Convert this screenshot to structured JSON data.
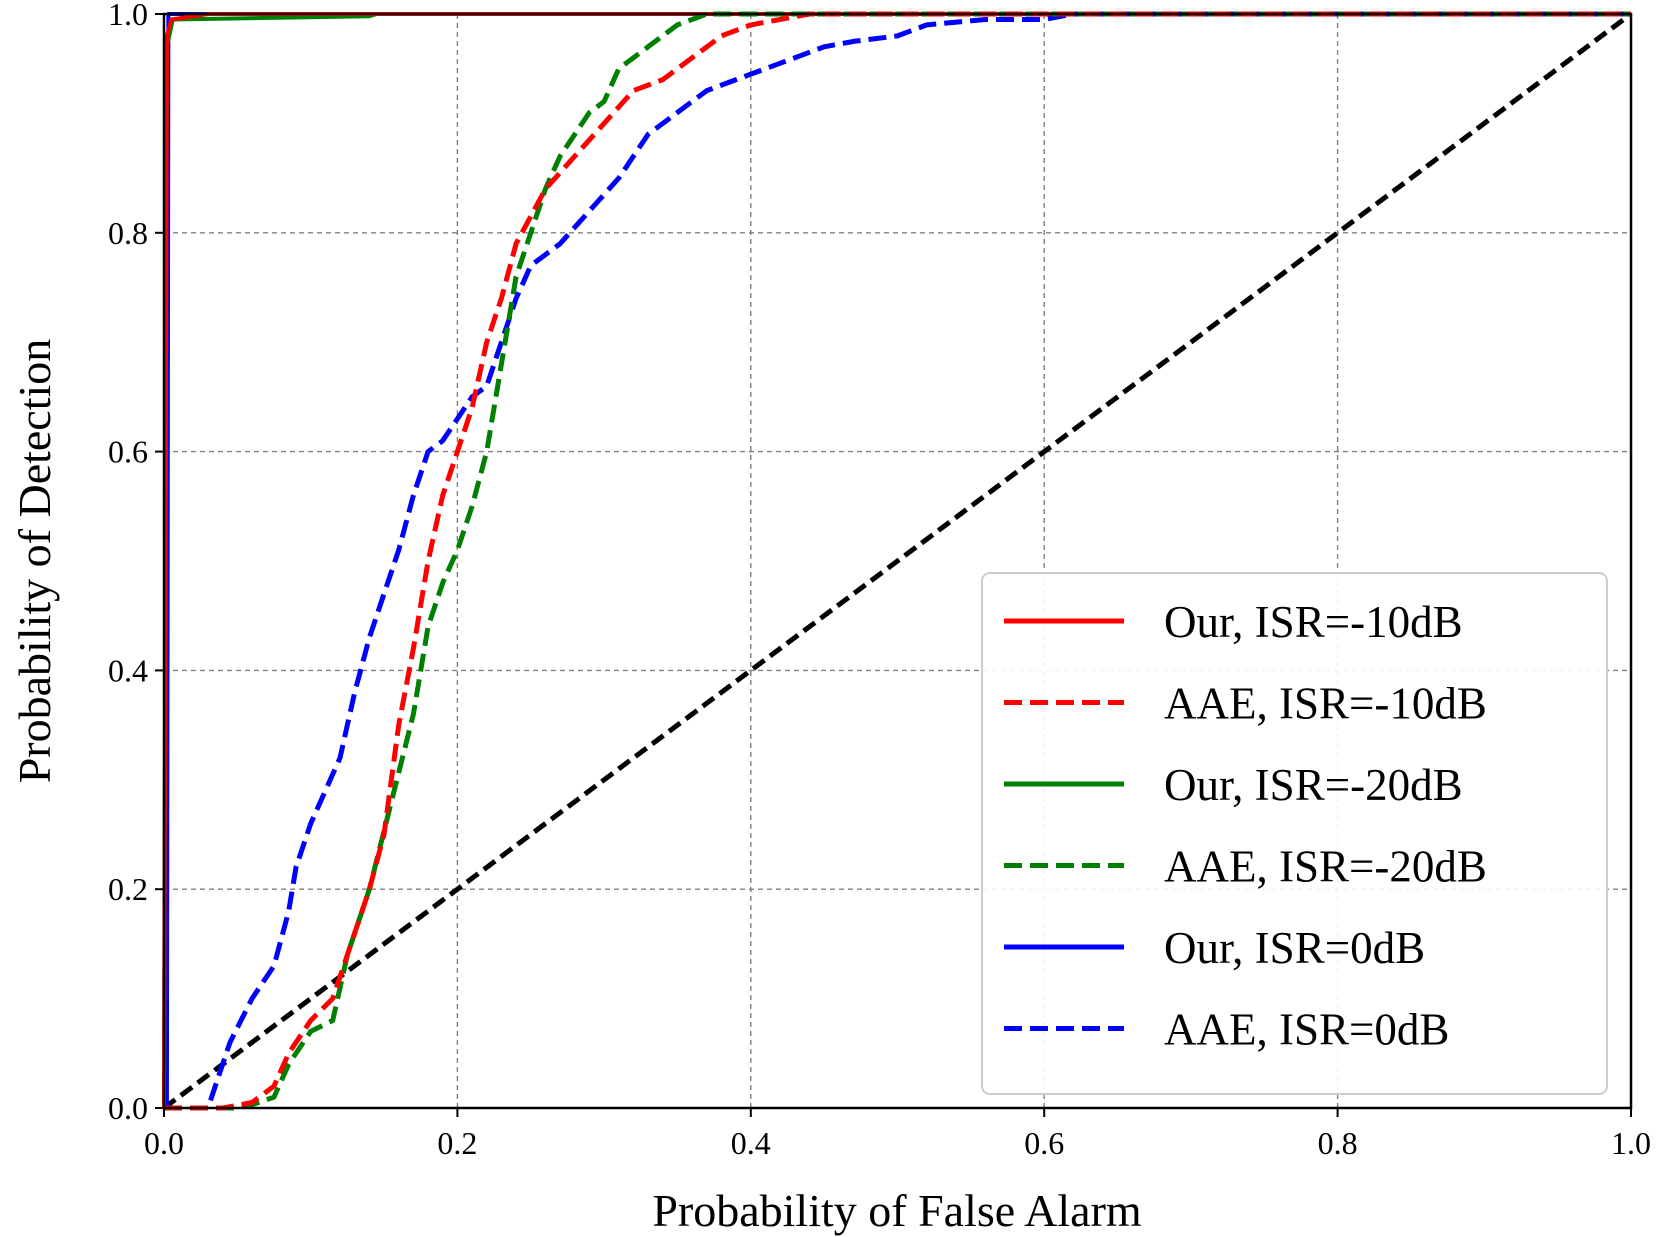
{
  "chart_data": {
    "type": "line",
    "xlabel": "Probability of False Alarm",
    "ylabel": "Probability of Detection",
    "xlim": [
      0.0,
      1.0
    ],
    "ylim": [
      0.0,
      1.0
    ],
    "xticks": [
      "0.0",
      "0.2",
      "0.4",
      "0.6",
      "0.8",
      "1.0"
    ],
    "yticks": [
      "0.0",
      "0.2",
      "0.4",
      "0.6",
      "0.8",
      "1.0"
    ],
    "grid": true,
    "legend_position": "lower-right",
    "series": [
      {
        "name": "Our, ISR=-10dB",
        "color": "#ff0000",
        "style": "solid",
        "points": [
          [
            0.0,
            0.0
          ],
          [
            0.002,
            0.98
          ],
          [
            0.005,
            0.995
          ],
          [
            0.03,
            1.0
          ],
          [
            1.0,
            1.0
          ]
        ]
      },
      {
        "name": "AAE, ISR=-10dB",
        "color": "#ff0000",
        "style": "dashed",
        "points": [
          [
            0.0,
            0.0
          ],
          [
            0.04,
            0.0
          ],
          [
            0.06,
            0.005
          ],
          [
            0.075,
            0.02
          ],
          [
            0.085,
            0.05
          ],
          [
            0.1,
            0.08
          ],
          [
            0.115,
            0.1
          ],
          [
            0.125,
            0.14
          ],
          [
            0.14,
            0.2
          ],
          [
            0.15,
            0.25
          ],
          [
            0.16,
            0.35
          ],
          [
            0.17,
            0.42
          ],
          [
            0.18,
            0.5
          ],
          [
            0.19,
            0.56
          ],
          [
            0.2,
            0.6
          ],
          [
            0.21,
            0.64
          ],
          [
            0.22,
            0.7
          ],
          [
            0.23,
            0.74
          ],
          [
            0.24,
            0.79
          ],
          [
            0.26,
            0.84
          ],
          [
            0.28,
            0.87
          ],
          [
            0.3,
            0.9
          ],
          [
            0.32,
            0.93
          ],
          [
            0.34,
            0.94
          ],
          [
            0.36,
            0.96
          ],
          [
            0.38,
            0.98
          ],
          [
            0.4,
            0.99
          ],
          [
            0.44,
            1.0
          ],
          [
            0.47,
            1.0
          ],
          [
            1.0,
            1.0
          ]
        ]
      },
      {
        "name": "Our, ISR=-20dB",
        "color": "#008000",
        "style": "solid",
        "points": [
          [
            0.0,
            0.0
          ],
          [
            0.002,
            0.97
          ],
          [
            0.006,
            0.995
          ],
          [
            0.14,
            0.998
          ],
          [
            0.145,
            1.0
          ],
          [
            1.0,
            1.0
          ]
        ]
      },
      {
        "name": "AAE, ISR=-20dB",
        "color": "#008000",
        "style": "dashed",
        "points": [
          [
            0.0,
            0.0
          ],
          [
            0.05,
            0.0
          ],
          [
            0.06,
            0.003
          ],
          [
            0.075,
            0.01
          ],
          [
            0.085,
            0.04
          ],
          [
            0.1,
            0.07
          ],
          [
            0.115,
            0.08
          ],
          [
            0.125,
            0.14
          ],
          [
            0.14,
            0.2
          ],
          [
            0.155,
            0.28
          ],
          [
            0.17,
            0.36
          ],
          [
            0.18,
            0.44
          ],
          [
            0.19,
            0.48
          ],
          [
            0.2,
            0.51
          ],
          [
            0.21,
            0.55
          ],
          [
            0.22,
            0.6
          ],
          [
            0.23,
            0.68
          ],
          [
            0.24,
            0.76
          ],
          [
            0.25,
            0.8
          ],
          [
            0.26,
            0.84
          ],
          [
            0.27,
            0.87
          ],
          [
            0.28,
            0.89
          ],
          [
            0.29,
            0.91
          ],
          [
            0.3,
            0.92
          ],
          [
            0.31,
            0.95
          ],
          [
            0.33,
            0.97
          ],
          [
            0.35,
            0.99
          ],
          [
            0.37,
            1.0
          ],
          [
            1.0,
            1.0
          ]
        ]
      },
      {
        "name": "Our, ISR=0dB",
        "color": "#0000ff",
        "style": "solid",
        "points": [
          [
            0.0,
            0.0
          ],
          [
            0.002,
            0.0
          ],
          [
            0.003,
            1.0
          ],
          [
            1.0,
            1.0
          ]
        ]
      },
      {
        "name": "AAE, ISR=0dB",
        "color": "#0000ff",
        "style": "dashed",
        "points": [
          [
            0.0,
            0.0
          ],
          [
            0.03,
            0.0
          ],
          [
            0.035,
            0.02
          ],
          [
            0.045,
            0.06
          ],
          [
            0.06,
            0.1
          ],
          [
            0.075,
            0.13
          ],
          [
            0.085,
            0.18
          ],
          [
            0.09,
            0.22
          ],
          [
            0.1,
            0.26
          ],
          [
            0.11,
            0.29
          ],
          [
            0.12,
            0.32
          ],
          [
            0.13,
            0.38
          ],
          [
            0.14,
            0.43
          ],
          [
            0.15,
            0.47
          ],
          [
            0.16,
            0.51
          ],
          [
            0.17,
            0.56
          ],
          [
            0.18,
            0.6
          ],
          [
            0.19,
            0.61
          ],
          [
            0.2,
            0.63
          ],
          [
            0.21,
            0.65
          ],
          [
            0.22,
            0.66
          ],
          [
            0.23,
            0.7
          ],
          [
            0.24,
            0.74
          ],
          [
            0.25,
            0.77
          ],
          [
            0.27,
            0.79
          ],
          [
            0.29,
            0.82
          ],
          [
            0.31,
            0.85
          ],
          [
            0.33,
            0.89
          ],
          [
            0.35,
            0.91
          ],
          [
            0.37,
            0.93
          ],
          [
            0.39,
            0.94
          ],
          [
            0.41,
            0.95
          ],
          [
            0.43,
            0.96
          ],
          [
            0.45,
            0.97
          ],
          [
            0.47,
            0.975
          ],
          [
            0.5,
            0.98
          ],
          [
            0.52,
            0.99
          ],
          [
            0.56,
            0.995
          ],
          [
            0.6,
            0.995
          ],
          [
            0.62,
            1.0
          ],
          [
            1.0,
            1.0
          ]
        ]
      },
      {
        "name": "",
        "color": "#000000",
        "style": "dashed",
        "points": [
          [
            0.0,
            0.0
          ],
          [
            1.0,
            1.0
          ]
        ]
      }
    ]
  }
}
